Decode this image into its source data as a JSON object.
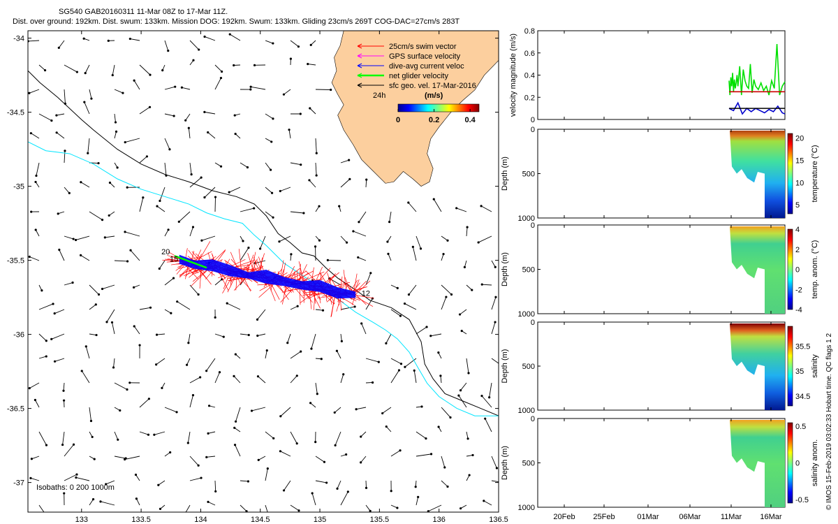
{
  "title": {
    "line1": "SG540 GAB20160311 11-Mar 08Z to 17-Mar 11Z.",
    "line2": "Dist. over ground: 192km. Dist. swum: 133km. Mission DOG: 192km. Swum: 133km. Gliding 23cm/s 269T COG-DAC=27cm/s 283T"
  },
  "credit": "© IMOS 15-Feb-2019 03:02:33 Hobart time. QC flags 1  2",
  "colors": {
    "land": "#fccf9e",
    "swim": "#ff0000",
    "gps": "#ff00ff",
    "dac": "#0000ff",
    "net": "#00ff00",
    "isobath200": "#00e5ff",
    "isobath1000": "#000000",
    "speed_line": "#cc0000"
  },
  "chart_data": [
    {
      "type": "map",
      "name": "track-map",
      "xlim": [
        132.55,
        136.5
      ],
      "ylim": [
        -37.2,
        -33.95
      ],
      "xticks": [
        133,
        133.5,
        134,
        134.5,
        135,
        135.5,
        136,
        136.5
      ],
      "xtick_labels": [
        "133",
        "133.5",
        "134",
        "134.5",
        "135",
        "135.5",
        "136",
        "136.5"
      ],
      "yticks": [
        -34,
        -34.5,
        -35,
        -35.5,
        -36,
        -36.5,
        -37
      ],
      "ytick_labels": [
        "-34",
        "-34.5",
        "-35",
        "-35.5",
        "-36",
        "-36.5",
        "-37"
      ],
      "legend": [
        {
          "label": "25cm/s swim vector",
          "color": "#ff0000"
        },
        {
          "label": "GPS surface velocity",
          "color": "#ff00ff"
        },
        {
          "label": "dive-avg current veloc",
          "color": "#0000ff"
        },
        {
          "label": "net glider velocity",
          "color": "#00ff00"
        },
        {
          "label": "sfc geo. vel. 17-Mar-2016",
          "color": "#000000"
        }
      ],
      "legend_note": "24h",
      "colorbar": {
        "title": "(m/s)",
        "tick_labels": [
          "0",
          "0.2",
          "0.4"
        ],
        "range": [
          0,
          0.45
        ]
      },
      "isobath_label": "Isobaths: 0   200  1000m",
      "track_labels": [
        {
          "text": "20",
          "lon": 133.67,
          "lat": -35.46
        },
        {
          "text": "15",
          "lon": 133.74,
          "lat": -35.51
        },
        {
          "text": "12",
          "lon": 135.35,
          "lat": -35.74
        }
      ],
      "track": {
        "start": [
          135.3,
          -35.73
        ],
        "end": [
          133.77,
          -35.48
        ],
        "points": [
          [
            135.3,
            -35.73
          ],
          [
            135.15,
            -35.72
          ],
          [
            135.0,
            -35.69
          ],
          [
            134.85,
            -35.66
          ],
          [
            134.7,
            -35.65
          ],
          [
            134.55,
            -35.62
          ],
          [
            134.4,
            -35.6
          ],
          [
            134.25,
            -35.57
          ],
          [
            134.1,
            -35.55
          ],
          [
            133.95,
            -35.52
          ],
          [
            133.82,
            -35.5
          ]
        ]
      },
      "isobath_1000m": [
        [
          132.55,
          -34.22
        ],
        [
          132.65,
          -34.3
        ],
        [
          132.8,
          -34.4
        ],
        [
          133.0,
          -34.55
        ],
        [
          133.1,
          -34.62
        ],
        [
          133.3,
          -34.75
        ],
        [
          133.5,
          -34.85
        ],
        [
          133.7,
          -34.92
        ],
        [
          133.9,
          -34.97
        ],
        [
          134.1,
          -35.03
        ],
        [
          134.3,
          -35.07
        ],
        [
          134.45,
          -35.12
        ],
        [
          134.55,
          -35.2
        ],
        [
          134.65,
          -35.32
        ],
        [
          134.75,
          -35.38
        ],
        [
          134.85,
          -35.45
        ],
        [
          134.95,
          -35.47
        ],
        [
          135.05,
          -35.55
        ],
        [
          135.15,
          -35.62
        ],
        [
          135.3,
          -35.7
        ],
        [
          135.42,
          -35.77
        ],
        [
          135.6,
          -35.82
        ],
        [
          135.75,
          -35.9
        ],
        [
          135.85,
          -36.05
        ],
        [
          135.88,
          -36.2
        ],
        [
          135.95,
          -36.3
        ],
        [
          136.05,
          -36.4
        ],
        [
          136.2,
          -36.45
        ],
        [
          136.35,
          -36.5
        ],
        [
          136.5,
          -36.55
        ]
      ],
      "isobath_200m": [
        [
          132.55,
          -34.7
        ],
        [
          132.7,
          -34.76
        ],
        [
          132.9,
          -34.78
        ],
        [
          133.1,
          -34.85
        ],
        [
          133.3,
          -34.95
        ],
        [
          133.5,
          -35.02
        ],
        [
          133.7,
          -35.07
        ],
        [
          133.9,
          -35.12
        ],
        [
          134.05,
          -35.18
        ],
        [
          134.2,
          -35.22
        ],
        [
          134.35,
          -35.25
        ],
        [
          134.45,
          -35.33
        ],
        [
          134.55,
          -35.4
        ],
        [
          134.7,
          -35.52
        ],
        [
          134.85,
          -35.6
        ],
        [
          135.0,
          -35.68
        ],
        [
          135.15,
          -35.76
        ],
        [
          135.3,
          -35.85
        ],
        [
          135.45,
          -35.92
        ],
        [
          135.55,
          -35.97
        ],
        [
          135.65,
          -36.03
        ],
        [
          135.75,
          -36.12
        ],
        [
          135.82,
          -36.22
        ],
        [
          135.9,
          -36.33
        ],
        [
          136.0,
          -36.42
        ],
        [
          136.15,
          -36.5
        ],
        [
          136.3,
          -36.55
        ],
        [
          136.5,
          -36.55
        ]
      ],
      "coastline": [
        [
          135.2,
          -33.95
        ],
        [
          135.17,
          -34.05
        ],
        [
          135.12,
          -34.13
        ],
        [
          135.14,
          -34.22
        ],
        [
          135.1,
          -34.3
        ],
        [
          135.15,
          -34.38
        ],
        [
          135.2,
          -34.45
        ],
        [
          135.15,
          -34.52
        ],
        [
          135.2,
          -34.62
        ],
        [
          135.28,
          -34.72
        ],
        [
          135.35,
          -34.82
        ],
        [
          135.45,
          -34.9
        ],
        [
          135.55,
          -34.98
        ],
        [
          135.62,
          -34.97
        ],
        [
          135.7,
          -34.9
        ],
        [
          135.78,
          -34.95
        ],
        [
          135.85,
          -35.0
        ],
        [
          135.92,
          -34.97
        ],
        [
          135.95,
          -34.88
        ],
        [
          135.9,
          -34.78
        ],
        [
          135.93,
          -34.68
        ],
        [
          136.0,
          -34.6
        ],
        [
          136.1,
          -34.5
        ],
        [
          136.2,
          -34.42
        ],
        [
          136.3,
          -34.35
        ],
        [
          136.38,
          -34.25
        ],
        [
          136.5,
          -34.15
        ],
        [
          136.5,
          -33.95
        ]
      ]
    },
    {
      "type": "line",
      "name": "velocity-magnitude",
      "ylabel": "velocity magnitude (m/s)",
      "ylim": [
        0,
        0.8
      ],
      "yticks": [
        0,
        0.2,
        0.4,
        0.6,
        0.8
      ],
      "ytick_labels": [
        "0",
        "0.2",
        "0.4",
        "0.6",
        "0.8"
      ],
      "xlim": [
        15.5,
        19.1
      ],
      "series": [
        {
          "color": "#00e000",
          "values_x": [
            11.0,
            11.1,
            11.2,
            11.3,
            11.4,
            11.5,
            11.6,
            11.7,
            11.8,
            11.9,
            12.0,
            12.2,
            12.4,
            12.6,
            12.8,
            13.0,
            13.2,
            13.4,
            13.6,
            13.8,
            14.0,
            14.3,
            14.6,
            14.9,
            15.2,
            15.5,
            15.8,
            16.1,
            16.4,
            16.7,
            17.0,
            17.3
          ],
          "values_y": [
            0.35,
            0.22,
            0.38,
            0.3,
            0.42,
            0.25,
            0.36,
            0.28,
            0.33,
            0.4,
            0.3,
            0.48,
            0.22,
            0.45,
            0.35,
            0.3,
            0.28,
            0.5,
            0.24,
            0.36,
            0.3,
            0.27,
            0.33,
            0.26,
            0.3,
            0.22,
            0.35,
            0.28,
            0.68,
            0.22,
            0.3,
            0.34
          ]
        },
        {
          "color": "#cc0000",
          "values_x": [
            11.0,
            17.3
          ],
          "values_y": [
            0.25,
            0.25
          ]
        },
        {
          "color": "#0000cc",
          "values_x": [
            11.0,
            11.5,
            12.0,
            12.5,
            13.0,
            13.5,
            14.0,
            14.5,
            15.0,
            15.5,
            16.0,
            16.5,
            17.0,
            17.3
          ],
          "values_y": [
            0.1,
            0.08,
            0.15,
            0.05,
            0.1,
            0.07,
            0.1,
            0.08,
            0.06,
            0.09,
            0.07,
            0.12,
            0.06,
            0.05
          ]
        },
        {
          "color": "#000000",
          "values_x": [
            11.0,
            17.3
          ],
          "values_y": [
            0.1,
            0.1
          ]
        }
      ]
    },
    {
      "type": "heatmap",
      "name": "temperature",
      "ylabel": "Depth (m)",
      "ylim": [
        1000,
        0
      ],
      "yticks": [
        0,
        500,
        1000
      ],
      "ytick_labels": [
        "0",
        "500",
        "1000"
      ],
      "colorbar_label": "temperature (°C)",
      "colorbar_ticks": [
        "20",
        "15",
        "10",
        "5"
      ],
      "colorbar_range": [
        3,
        21
      ]
    },
    {
      "type": "heatmap",
      "name": "temp-anomaly",
      "ylabel": "Depth (m)",
      "ylim": [
        1000,
        0
      ],
      "yticks": [
        0,
        500,
        1000
      ],
      "ytick_labels": [
        "0",
        "500",
        "1000"
      ],
      "colorbar_label": "temp. anom. (°C)",
      "colorbar_ticks": [
        "4",
        "2",
        "0",
        "-2",
        "-4"
      ],
      "colorbar_range": [
        -4,
        4
      ]
    },
    {
      "type": "heatmap",
      "name": "salinity",
      "ylabel": "Depth (m)",
      "ylim": [
        1000,
        0
      ],
      "yticks": [
        0,
        500,
        1000
      ],
      "ytick_labels": [
        "0",
        "500",
        "1000"
      ],
      "colorbar_label": "salinity",
      "colorbar_ticks": [
        "35.5",
        "35",
        "34.5"
      ],
      "colorbar_range": [
        34.3,
        35.9
      ]
    },
    {
      "type": "heatmap",
      "name": "salinity-anomaly",
      "ylabel": "Depth (m)",
      "ylim": [
        1000,
        0
      ],
      "yticks": [
        0,
        500,
        1000
      ],
      "ytick_labels": [
        "0",
        "500",
        "1000"
      ],
      "colorbar_label": "salinity anom.",
      "colorbar_ticks": [
        "0.5",
        "0",
        "-0.5"
      ],
      "colorbar_range": [
        -0.55,
        0.55
      ],
      "xtick_labels": [
        "20Feb",
        "25Feb",
        "01Mar",
        "06Mar",
        "11Mar",
        "16Mar"
      ]
    }
  ]
}
